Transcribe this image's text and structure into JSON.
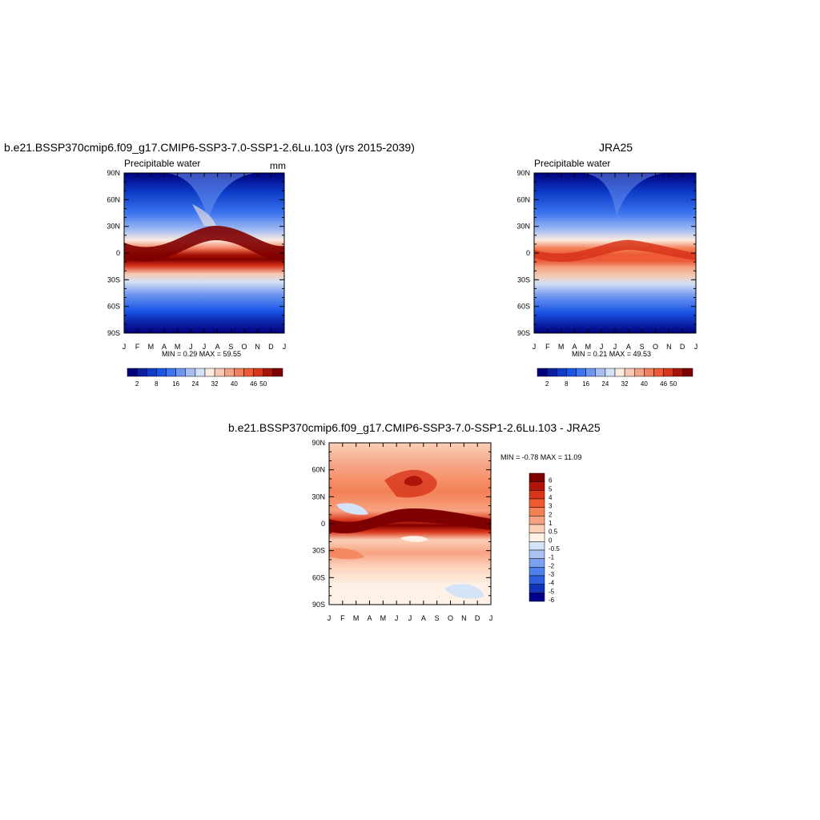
{
  "chart_data": [
    {
      "type": "heatmap",
      "title": "b.e21.BSSP370cmip6.f09_g17.CMIP6-SSP3-7.0-SSP1-2.6Lu.103 (yrs 2015-2039)",
      "left_label": "Precipitable water",
      "units": "mm",
      "x_ticks": [
        "J",
        "F",
        "M",
        "A",
        "M",
        "J",
        "J",
        "A",
        "S",
        "O",
        "N",
        "D",
        "J"
      ],
      "y_ticks": [
        "90N",
        "60N",
        "30N",
        "0",
        "30S",
        "60S",
        "90S"
      ],
      "min_label": "MIN =   0.29 MAX =  59.55",
      "colorbar_labels": [
        "2",
        "8",
        "16",
        "24",
        "32",
        "40",
        "46",
        "50"
      ]
    },
    {
      "type": "heatmap",
      "title": "JRA25",
      "left_label": "Precipitable water",
      "x_ticks": [
        "J",
        "F",
        "M",
        "A",
        "M",
        "J",
        "J",
        "A",
        "S",
        "O",
        "N",
        "D",
        "J"
      ],
      "y_ticks": [
        "90N",
        "60N",
        "30N",
        "0",
        "30S",
        "60S",
        "90S"
      ],
      "min_label": "MIN =   0.21 MAX =  49.53",
      "colorbar_labels": [
        "2",
        "8",
        "16",
        "24",
        "32",
        "40",
        "46",
        "50"
      ]
    },
    {
      "type": "heatmap",
      "title": "b.e21.BSSP370cmip6.f09_g17.CMIP6-SSP3-7.0-SSP1-2.6Lu.103 - JRA25",
      "x_ticks": [
        "J",
        "F",
        "M",
        "A",
        "M",
        "J",
        "J",
        "A",
        "S",
        "O",
        "N",
        "D",
        "J"
      ],
      "y_ticks": [
        "90N",
        "60N",
        "30N",
        "0",
        "30S",
        "60S",
        "90S"
      ],
      "min_label": "MIN =  -0.78 MAX =  11.09",
      "colorbar_labels": [
        "6",
        "5",
        "4",
        "3",
        "2",
        "1",
        "0.5",
        "0",
        "-0.5",
        "-1",
        "-2",
        "-3",
        "-4",
        "-5",
        "-6"
      ]
    }
  ],
  "palettes": {
    "abs": [
      "#00007f",
      "#0a1ea0",
      "#0d3cc8",
      "#1a55e6",
      "#3c73ee",
      "#6e96f0",
      "#a6bff2",
      "#d3e0f5",
      "#fbebe0",
      "#f6c9b2",
      "#f3a385",
      "#f27f5f",
      "#ec5a37",
      "#d8351a",
      "#a81406",
      "#7f0000"
    ],
    "diff": [
      "#7f0000",
      "#b01308",
      "#d8351a",
      "#f05a2e",
      "#f38155",
      "#f6a282",
      "#fbd0b7",
      "#fff1e6",
      "#d5e3f7",
      "#a9c2f2",
      "#7aa0ef",
      "#4f80ec",
      "#2b5ee0",
      "#1135b8",
      "#00008b"
    ]
  }
}
